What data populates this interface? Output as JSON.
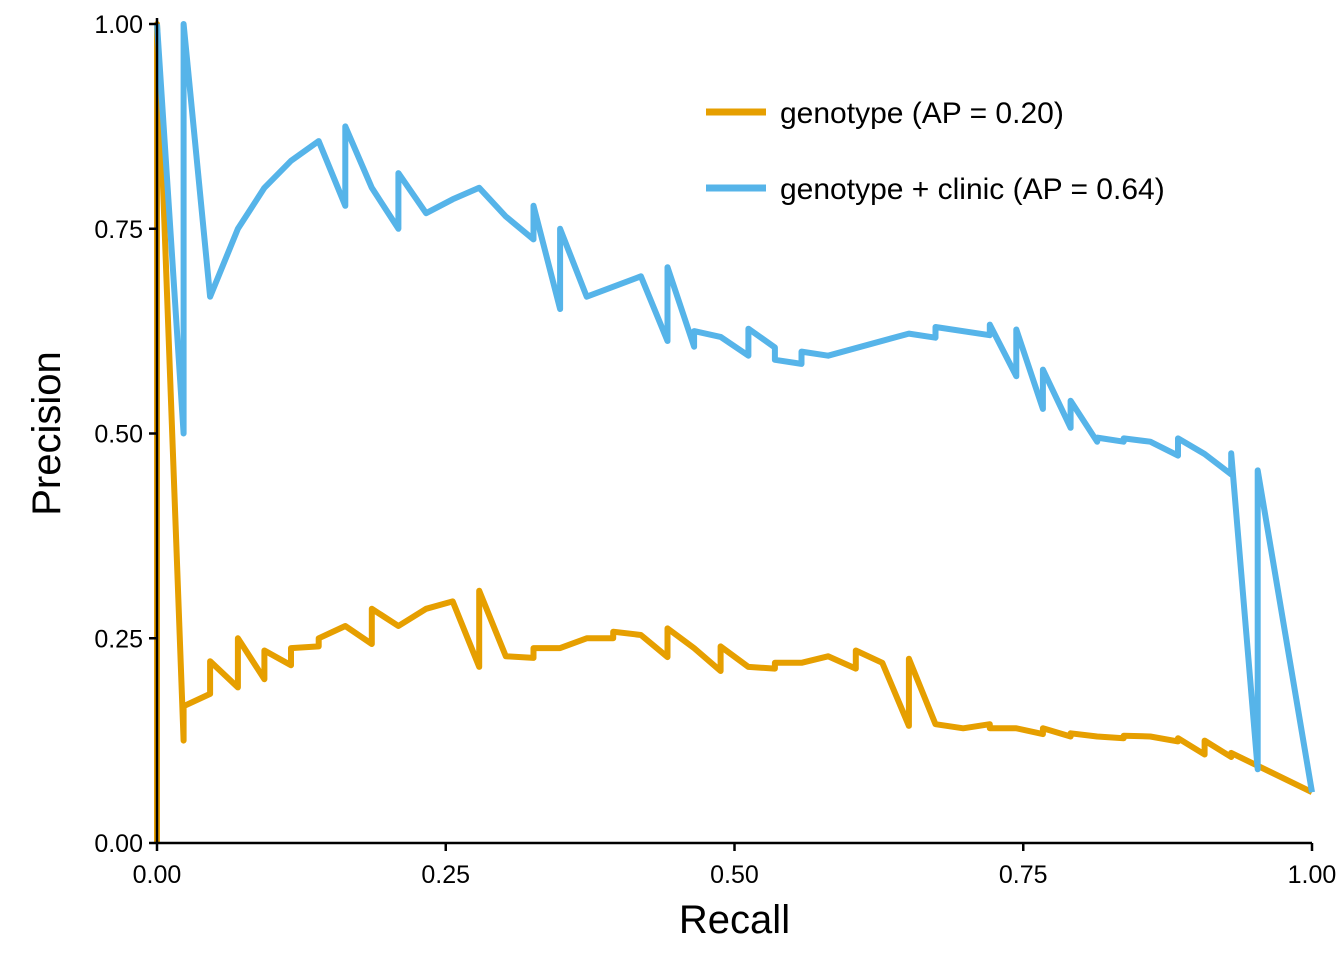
{
  "chart_data": {
    "type": "line",
    "title": "",
    "xlabel": "Recall",
    "ylabel": "Precision",
    "xlim": [
      0,
      1
    ],
    "ylim": [
      0,
      1
    ],
    "x_ticks": [
      "0.00",
      "0.25",
      "0.50",
      "0.75",
      "1.00"
    ],
    "y_ticks": [
      "0.00",
      "0.25",
      "0.50",
      "0.75",
      "1.00"
    ],
    "grid": false,
    "legend_position": "top-right",
    "series": [
      {
        "name": "genotype (AP = 0.20)",
        "color": "#E69F00",
        "points": [
          [
            0.0,
            0.0
          ],
          [
            0.0,
            1.0
          ],
          [
            0.023,
            0.125
          ],
          [
            0.023,
            0.167
          ],
          [
            0.046,
            0.182
          ],
          [
            0.046,
            0.222
          ],
          [
            0.07,
            0.19
          ],
          [
            0.07,
            0.25
          ],
          [
            0.093,
            0.2
          ],
          [
            0.093,
            0.235
          ],
          [
            0.116,
            0.217
          ],
          [
            0.116,
            0.238
          ],
          [
            0.14,
            0.24
          ],
          [
            0.14,
            0.25
          ],
          [
            0.163,
            0.265
          ],
          [
            0.186,
            0.243
          ],
          [
            0.186,
            0.286
          ],
          [
            0.209,
            0.265
          ],
          [
            0.233,
            0.286
          ],
          [
            0.256,
            0.295
          ],
          [
            0.279,
            0.215
          ],
          [
            0.279,
            0.308
          ],
          [
            0.302,
            0.228
          ],
          [
            0.326,
            0.226
          ],
          [
            0.326,
            0.238
          ],
          [
            0.349,
            0.238
          ],
          [
            0.372,
            0.25
          ],
          [
            0.395,
            0.25
          ],
          [
            0.395,
            0.258
          ],
          [
            0.419,
            0.254
          ],
          [
            0.442,
            0.227
          ],
          [
            0.442,
            0.262
          ],
          [
            0.465,
            0.238
          ],
          [
            0.488,
            0.21
          ],
          [
            0.488,
            0.24
          ],
          [
            0.512,
            0.215
          ],
          [
            0.535,
            0.213
          ],
          [
            0.535,
            0.22
          ],
          [
            0.558,
            0.22
          ],
          [
            0.581,
            0.228
          ],
          [
            0.605,
            0.213
          ],
          [
            0.605,
            0.235
          ],
          [
            0.628,
            0.22
          ],
          [
            0.651,
            0.143
          ],
          [
            0.651,
            0.225
          ],
          [
            0.674,
            0.145
          ],
          [
            0.698,
            0.14
          ],
          [
            0.721,
            0.145
          ],
          [
            0.721,
            0.14
          ],
          [
            0.744,
            0.14
          ],
          [
            0.767,
            0.133
          ],
          [
            0.767,
            0.14
          ],
          [
            0.791,
            0.13
          ],
          [
            0.791,
            0.134
          ],
          [
            0.814,
            0.13
          ],
          [
            0.837,
            0.128
          ],
          [
            0.837,
            0.131
          ],
          [
            0.86,
            0.13
          ],
          [
            0.884,
            0.124
          ],
          [
            0.884,
            0.128
          ],
          [
            0.907,
            0.108
          ],
          [
            0.907,
            0.125
          ],
          [
            0.93,
            0.105
          ],
          [
            0.93,
            0.11
          ],
          [
            1.0,
            0.062
          ]
        ]
      },
      {
        "name": "genotype + clinic (AP = 0.64)",
        "color": "#56B4E9",
        "points": [
          [
            0.0,
            1.0
          ],
          [
            0.023,
            0.5
          ],
          [
            0.023,
            1.0
          ],
          [
            0.046,
            0.667
          ],
          [
            0.07,
            0.75
          ],
          [
            0.093,
            0.8
          ],
          [
            0.116,
            0.833
          ],
          [
            0.14,
            0.857
          ],
          [
            0.163,
            0.778
          ],
          [
            0.163,
            0.875
          ],
          [
            0.186,
            0.8
          ],
          [
            0.209,
            0.75
          ],
          [
            0.209,
            0.818
          ],
          [
            0.233,
            0.769
          ],
          [
            0.256,
            0.786
          ],
          [
            0.279,
            0.8
          ],
          [
            0.302,
            0.765
          ],
          [
            0.326,
            0.737
          ],
          [
            0.326,
            0.778
          ],
          [
            0.349,
            0.652
          ],
          [
            0.349,
            0.75
          ],
          [
            0.372,
            0.667
          ],
          [
            0.419,
            0.692
          ],
          [
            0.442,
            0.613
          ],
          [
            0.442,
            0.703
          ],
          [
            0.465,
            0.606
          ],
          [
            0.465,
            0.625
          ],
          [
            0.488,
            0.618
          ],
          [
            0.512,
            0.595
          ],
          [
            0.512,
            0.628
          ],
          [
            0.535,
            0.605
          ],
          [
            0.535,
            0.59
          ],
          [
            0.558,
            0.585
          ],
          [
            0.558,
            0.6
          ],
          [
            0.581,
            0.595
          ],
          [
            0.651,
            0.622
          ],
          [
            0.674,
            0.617
          ],
          [
            0.674,
            0.63
          ],
          [
            0.721,
            0.62
          ],
          [
            0.721,
            0.633
          ],
          [
            0.744,
            0.57
          ],
          [
            0.744,
            0.627
          ],
          [
            0.767,
            0.53
          ],
          [
            0.767,
            0.578
          ],
          [
            0.791,
            0.507
          ],
          [
            0.791,
            0.54
          ],
          [
            0.814,
            0.49
          ],
          [
            0.814,
            0.495
          ],
          [
            0.837,
            0.49
          ],
          [
            0.837,
            0.494
          ],
          [
            0.86,
            0.49
          ],
          [
            0.884,
            0.473
          ],
          [
            0.884,
            0.494
          ],
          [
            0.907,
            0.475
          ],
          [
            0.93,
            0.45
          ],
          [
            0.93,
            0.476
          ],
          [
            0.953,
            0.09
          ],
          [
            0.953,
            0.455
          ],
          [
            1.0,
            0.062
          ]
        ]
      }
    ]
  }
}
